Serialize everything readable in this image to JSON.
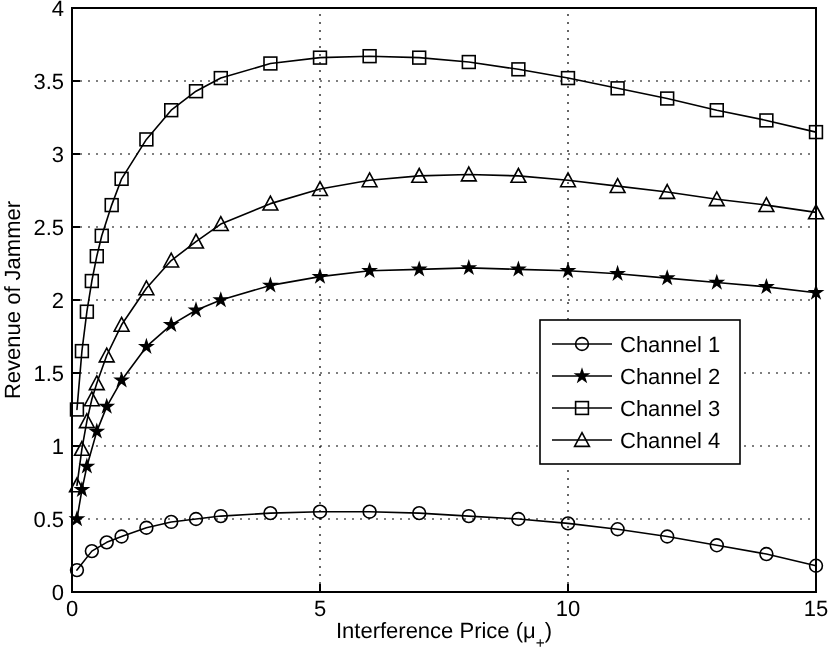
{
  "chart_data": {
    "type": "line",
    "xlabel": "Interference Price (μ$_{+}$)",
    "ylabel": "Revenue of Jammer",
    "xlim": [
      0,
      15
    ],
    "ylim": [
      0,
      4
    ],
    "xticks": [
      0,
      5,
      10,
      15
    ],
    "yticks": [
      0,
      0.5,
      1,
      1.5,
      2,
      2.5,
      3,
      3.5,
      4
    ],
    "grid": true,
    "legend": "right",
    "line_style": "solid",
    "series": [
      {
        "name": "Channel 1",
        "color": "#000000",
        "marker": "circle",
        "x": [
          0.1,
          0.4,
          0.7,
          1,
          1.5,
          2,
          2.5,
          3,
          4,
          5,
          6,
          7,
          8,
          9,
          10,
          11,
          12,
          13,
          14,
          15
        ],
        "values": [
          0.15,
          0.28,
          0.34,
          0.38,
          0.44,
          0.48,
          0.5,
          0.52,
          0.54,
          0.55,
          0.55,
          0.54,
          0.52,
          0.5,
          0.47,
          0.43,
          0.38,
          0.32,
          0.26,
          0.18
        ]
      },
      {
        "name": "Channel 2",
        "color": "#000000",
        "marker": "star",
        "x": [
          0.1,
          0.2,
          0.3,
          0.5,
          0.7,
          1,
          1.5,
          2,
          2.5,
          3,
          4,
          5,
          6,
          7,
          8,
          9,
          10,
          11,
          12,
          13,
          14,
          15
        ],
        "values": [
          0.5,
          0.7,
          0.86,
          1.1,
          1.27,
          1.45,
          1.68,
          1.83,
          1.93,
          2.0,
          2.1,
          2.16,
          2.2,
          2.21,
          2.22,
          2.21,
          2.2,
          2.18,
          2.15,
          2.12,
          2.09,
          2.05
        ]
      },
      {
        "name": "Channel 3",
        "color": "#000000",
        "marker": "square",
        "x": [
          0.1,
          0.2,
          0.3,
          0.4,
          0.5,
          0.6,
          0.8,
          1,
          1.5,
          2,
          2.5,
          3,
          4,
          5,
          6,
          7,
          8,
          9,
          10,
          11,
          12,
          13,
          14,
          15
        ],
        "values": [
          1.25,
          1.65,
          1.92,
          2.13,
          2.3,
          2.44,
          2.65,
          2.83,
          3.1,
          3.3,
          3.43,
          3.52,
          3.62,
          3.66,
          3.67,
          3.66,
          3.63,
          3.58,
          3.52,
          3.45,
          3.38,
          3.3,
          3.23,
          3.15
        ]
      },
      {
        "name": "Channel 4",
        "color": "#000000",
        "marker": "triangle",
        "x": [
          0.1,
          0.2,
          0.3,
          0.4,
          0.5,
          0.7,
          1,
          1.5,
          2,
          2.5,
          3,
          4,
          5,
          6,
          7,
          8,
          9,
          10,
          11,
          12,
          13,
          14,
          15
        ],
        "values": [
          0.73,
          0.98,
          1.17,
          1.32,
          1.43,
          1.62,
          1.83,
          2.08,
          2.27,
          2.4,
          2.52,
          2.66,
          2.76,
          2.82,
          2.85,
          2.86,
          2.85,
          2.82,
          2.78,
          2.74,
          2.69,
          2.65,
          2.6
        ]
      }
    ]
  }
}
